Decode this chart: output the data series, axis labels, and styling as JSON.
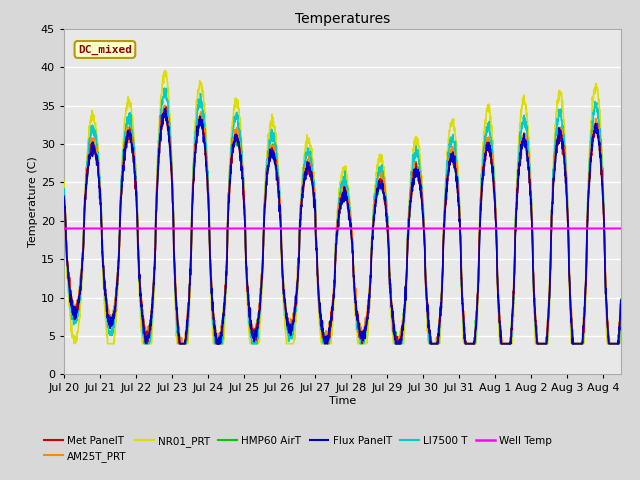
{
  "title": "Temperatures",
  "xlabel": "Time",
  "ylabel": "Temperature (C)",
  "ylim": [
    0,
    45
  ],
  "well_temp": 19.0,
  "fig_bg": "#d8d8d8",
  "plot_bg": "#e8e8e8",
  "annotation_text": "DC_mixed",
  "annotation_color": "#8B0000",
  "annotation_bg": "#ffffcc",
  "annotation_border": "#b8960c",
  "x_ticks": [
    "Jul 20",
    "Jul 21",
    "Jul 22",
    "Jul 23",
    "Jul 24",
    "Jul 25",
    "Jul 26",
    "Jul 27",
    "Jul 28",
    "Jul 29",
    "Jul 30",
    "Jul 31",
    "Aug 1",
    "Aug 2",
    "Aug 3",
    "Aug 4"
  ],
  "series": {
    "Met PanelT": {
      "color": "#cc0000",
      "lw": 1.2,
      "zorder": 5
    },
    "AM25T_PRT": {
      "color": "#ff8800",
      "lw": 1.2,
      "zorder": 4
    },
    "NR01_PRT": {
      "color": "#dddd00",
      "lw": 1.2,
      "zorder": 3
    },
    "HMP60 AirT": {
      "color": "#00cc00",
      "lw": 1.2,
      "zorder": 4
    },
    "Flux PanelT": {
      "color": "#0000cc",
      "lw": 1.2,
      "zorder": 6
    },
    "LI7500 T": {
      "color": "#00cccc",
      "lw": 1.2,
      "zorder": 3
    },
    "Well Temp": {
      "color": "#ff00ff",
      "lw": 1.5,
      "zorder": 7
    }
  },
  "n_days": 15.5,
  "pts_per_day": 144,
  "base_temp": 19.0,
  "amp_early": 12.0,
  "amp_mid": 8.0,
  "amp_late": 16.0
}
